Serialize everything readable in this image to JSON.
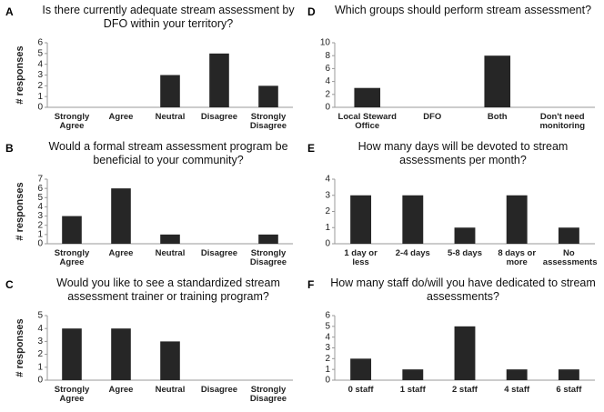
{
  "chart_data": [
    {
      "type": "bar",
      "panel": "A",
      "title": "Is there currently adequate stream assessment by DFO within your territory?",
      "ylabel": "# responses",
      "categories": [
        "Strongly Agree",
        "Agree",
        "Neutral",
        "Disagree",
        "Strongly Disagree"
      ],
      "values": [
        0,
        0,
        3,
        5,
        2
      ],
      "color": "#262626",
      "ylim": [
        0,
        6
      ],
      "yticks": [
        0,
        1,
        2,
        3,
        4,
        5,
        6
      ],
      "grid": false
    },
    {
      "type": "bar",
      "panel": "B",
      "title": "Would a formal stream assessment program be beneficial to your community?",
      "ylabel": "# responses",
      "categories": [
        "Strongly Agree",
        "Agree",
        "Neutral",
        "Disagree",
        "Strongly Disagree"
      ],
      "values": [
        3,
        6,
        1,
        0,
        1
      ],
      "color": "#262626",
      "ylim": [
        0,
        7
      ],
      "yticks": [
        0,
        1,
        2,
        3,
        4,
        5,
        6,
        7
      ],
      "grid": false
    },
    {
      "type": "bar",
      "panel": "C",
      "title": "Would you like to see a standardized stream assessment trainer or training program?",
      "ylabel": "# responses",
      "categories": [
        "Strongly Agree",
        "Agree",
        "Neutral",
        "Disagree",
        "Strongly Disagree"
      ],
      "values": [
        4,
        4,
        3,
        0,
        0
      ],
      "color": "#262626",
      "ylim": [
        0,
        5
      ],
      "yticks": [
        0,
        1,
        2,
        3,
        4,
        5
      ],
      "grid": false
    },
    {
      "type": "bar",
      "panel": "D",
      "title": "Which groups should perform stream assessment?",
      "categories": [
        "Local Steward Office",
        "DFO",
        "Both",
        "Don't need monitoring"
      ],
      "values": [
        3,
        0,
        8,
        0
      ],
      "color": "#262626",
      "ylim": [
        0,
        10
      ],
      "yticks": [
        0,
        2,
        4,
        6,
        8,
        10
      ],
      "grid": false
    },
    {
      "type": "bar",
      "panel": "E",
      "title": "How many days will be devoted to stream assessments per month?",
      "categories": [
        "1 day or less",
        "2-4 days",
        "5-8 days",
        "8 days or more",
        "No assessments"
      ],
      "values": [
        3,
        3,
        1,
        3,
        1
      ],
      "color": "#262626",
      "ylim": [
        0,
        4
      ],
      "yticks": [
        0,
        1,
        2,
        3,
        4
      ],
      "grid": false
    },
    {
      "type": "bar",
      "panel": "F",
      "title": "How many staff do/will you have dedicated to stream assessments?",
      "categories": [
        "0 staff",
        "1 staff",
        "2 staff",
        "4 staff",
        "6 staff"
      ],
      "values": [
        2,
        1,
        5,
        1,
        1
      ],
      "color": "#262626",
      "ylim": [
        0,
        6
      ],
      "yticks": [
        0,
        1,
        2,
        3,
        4,
        5,
        6
      ],
      "grid": false
    }
  ]
}
